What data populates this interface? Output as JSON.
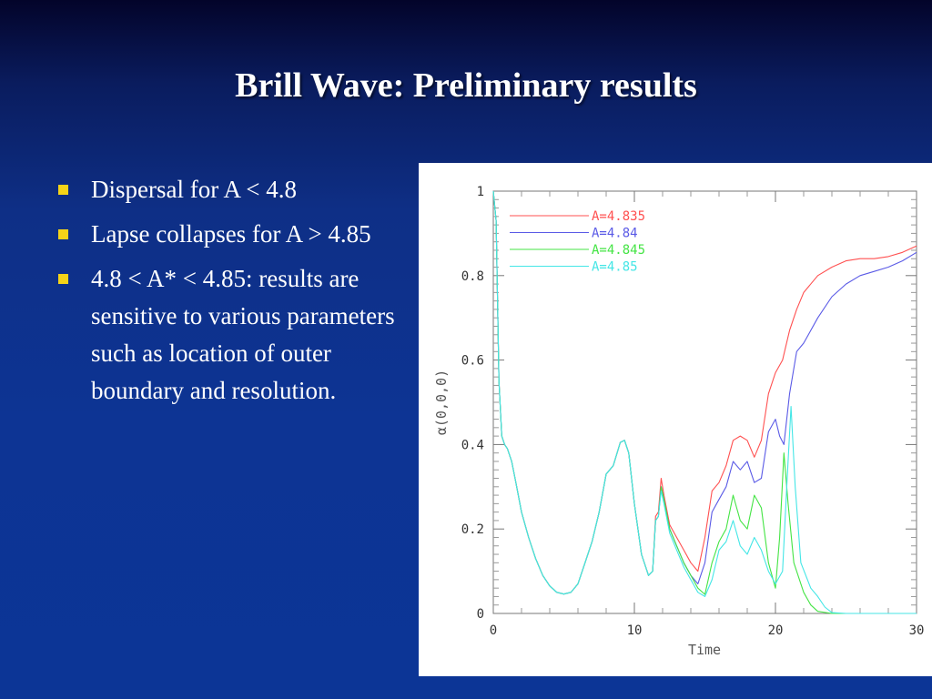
{
  "slide": {
    "title": "Brill Wave: Preliminary results",
    "bullets": [
      "Dispersal for A < 4.8",
      "Lapse collapses for A > 4.85",
      "4.8 < A* < 4.85: results are sensitive to various parameters such as location of outer boundary and resolution."
    ],
    "bullet_color": "#f5d418"
  },
  "chart_data": {
    "type": "line",
    "xlabel": "Time",
    "ylabel": "α(0,0,0)",
    "xlim": [
      0,
      30
    ],
    "ylim": [
      0,
      1
    ],
    "x_ticks": [
      0,
      10,
      20,
      30
    ],
    "y_ticks": [
      0,
      0.2,
      0.4,
      0.6,
      0.8,
      1
    ],
    "y_tick_labels": [
      "0",
      "0.2",
      "0.4",
      "0.6",
      "0.8",
      "1"
    ],
    "grid": false,
    "legend_position": "top-center",
    "series": [
      {
        "name": "A=4.835",
        "color": "#ff5050",
        "points": [
          [
            0,
            1
          ],
          [
            0.2,
            0.93
          ],
          [
            0.4,
            0.55
          ],
          [
            0.6,
            0.42
          ],
          [
            0.8,
            0.4
          ],
          [
            1,
            0.39
          ],
          [
            1.3,
            0.36
          ],
          [
            1.6,
            0.31
          ],
          [
            2,
            0.24
          ],
          [
            2.5,
            0.18
          ],
          [
            3,
            0.13
          ],
          [
            3.5,
            0.09
          ],
          [
            4,
            0.065
          ],
          [
            4.5,
            0.05
          ],
          [
            5,
            0.046
          ],
          [
            5.5,
            0.05
          ],
          [
            6,
            0.07
          ],
          [
            6.5,
            0.12
          ],
          [
            7,
            0.17
          ],
          [
            7.5,
            0.24
          ],
          [
            8,
            0.33
          ],
          [
            8.5,
            0.35
          ],
          [
            9,
            0.405
          ],
          [
            9.3,
            0.41
          ],
          [
            9.6,
            0.38
          ],
          [
            10,
            0.26
          ],
          [
            10.5,
            0.14
          ],
          [
            11,
            0.09
          ],
          [
            11.3,
            0.1
          ],
          [
            11.5,
            0.23
          ],
          [
            11.7,
            0.24
          ],
          [
            11.9,
            0.32
          ],
          [
            12.1,
            0.28
          ],
          [
            12.5,
            0.21
          ],
          [
            13,
            0.18
          ],
          [
            13.5,
            0.15
          ],
          [
            14,
            0.12
          ],
          [
            14.5,
            0.1
          ],
          [
            15,
            0.18
          ],
          [
            15.5,
            0.29
          ],
          [
            16,
            0.31
          ],
          [
            16.5,
            0.35
          ],
          [
            17,
            0.41
          ],
          [
            17.5,
            0.42
          ],
          [
            18,
            0.41
          ],
          [
            18.5,
            0.37
          ],
          [
            19,
            0.41
          ],
          [
            19.5,
            0.52
          ],
          [
            20,
            0.57
          ],
          [
            20.5,
            0.6
          ],
          [
            21,
            0.67
          ],
          [
            21.5,
            0.72
          ],
          [
            22,
            0.76
          ],
          [
            23,
            0.8
          ],
          [
            24,
            0.82
          ],
          [
            25,
            0.835
          ],
          [
            26,
            0.84
          ],
          [
            27,
            0.84
          ],
          [
            28,
            0.845
          ],
          [
            29,
            0.855
          ],
          [
            30,
            0.87
          ]
        ]
      },
      {
        "name": "A=4.84",
        "color": "#5a5ae6",
        "points": [
          [
            0,
            1
          ],
          [
            0.2,
            0.93
          ],
          [
            0.4,
            0.55
          ],
          [
            0.6,
            0.42
          ],
          [
            0.8,
            0.4
          ],
          [
            1,
            0.39
          ],
          [
            1.3,
            0.36
          ],
          [
            1.6,
            0.31
          ],
          [
            2,
            0.24
          ],
          [
            2.5,
            0.18
          ],
          [
            3,
            0.13
          ],
          [
            3.5,
            0.09
          ],
          [
            4,
            0.065
          ],
          [
            4.5,
            0.05
          ],
          [
            5,
            0.046
          ],
          [
            5.5,
            0.05
          ],
          [
            6,
            0.07
          ],
          [
            6.5,
            0.12
          ],
          [
            7,
            0.17
          ],
          [
            7.5,
            0.24
          ],
          [
            8,
            0.33
          ],
          [
            8.5,
            0.35
          ],
          [
            9,
            0.405
          ],
          [
            9.3,
            0.41
          ],
          [
            9.6,
            0.38
          ],
          [
            10,
            0.26
          ],
          [
            10.5,
            0.14
          ],
          [
            11,
            0.09
          ],
          [
            11.3,
            0.1
          ],
          [
            11.5,
            0.22
          ],
          [
            11.7,
            0.23
          ],
          [
            11.9,
            0.3
          ],
          [
            12.1,
            0.27
          ],
          [
            12.5,
            0.2
          ],
          [
            13,
            0.16
          ],
          [
            13.5,
            0.12
          ],
          [
            14,
            0.09
          ],
          [
            14.5,
            0.07
          ],
          [
            15,
            0.12
          ],
          [
            15.5,
            0.24
          ],
          [
            16,
            0.27
          ],
          [
            16.5,
            0.3
          ],
          [
            17,
            0.36
          ],
          [
            17.5,
            0.34
          ],
          [
            18,
            0.36
          ],
          [
            18.5,
            0.31
          ],
          [
            19,
            0.32
          ],
          [
            19.5,
            0.43
          ],
          [
            20,
            0.46
          ],
          [
            20.3,
            0.42
          ],
          [
            20.6,
            0.4
          ],
          [
            21,
            0.52
          ],
          [
            21.5,
            0.62
          ],
          [
            22,
            0.64
          ],
          [
            23,
            0.7
          ],
          [
            24,
            0.75
          ],
          [
            25,
            0.78
          ],
          [
            26,
            0.8
          ],
          [
            27,
            0.81
          ],
          [
            28,
            0.82
          ],
          [
            29,
            0.835
          ],
          [
            30,
            0.855
          ]
        ]
      },
      {
        "name": "A=4.845",
        "color": "#44e444",
        "points": [
          [
            0,
            1
          ],
          [
            0.2,
            0.93
          ],
          [
            0.4,
            0.55
          ],
          [
            0.6,
            0.42
          ],
          [
            0.8,
            0.4
          ],
          [
            1,
            0.39
          ],
          [
            1.3,
            0.36
          ],
          [
            1.6,
            0.31
          ],
          [
            2,
            0.24
          ],
          [
            2.5,
            0.18
          ],
          [
            3,
            0.13
          ],
          [
            3.5,
            0.09
          ],
          [
            4,
            0.065
          ],
          [
            4.5,
            0.05
          ],
          [
            5,
            0.046
          ],
          [
            5.5,
            0.05
          ],
          [
            6,
            0.07
          ],
          [
            6.5,
            0.12
          ],
          [
            7,
            0.17
          ],
          [
            7.5,
            0.24
          ],
          [
            8,
            0.33
          ],
          [
            8.5,
            0.35
          ],
          [
            9,
            0.405
          ],
          [
            9.3,
            0.41
          ],
          [
            9.6,
            0.38
          ],
          [
            10,
            0.26
          ],
          [
            10.5,
            0.14
          ],
          [
            11,
            0.09
          ],
          [
            11.3,
            0.1
          ],
          [
            11.5,
            0.22
          ],
          [
            11.7,
            0.23
          ],
          [
            11.9,
            0.3
          ],
          [
            12.1,
            0.27
          ],
          [
            12.5,
            0.2
          ],
          [
            13,
            0.16
          ],
          [
            13.5,
            0.12
          ],
          [
            14,
            0.09
          ],
          [
            14.5,
            0.06
          ],
          [
            15,
            0.045
          ],
          [
            15.5,
            0.12
          ],
          [
            16,
            0.17
          ],
          [
            16.5,
            0.2
          ],
          [
            17,
            0.28
          ],
          [
            17.5,
            0.22
          ],
          [
            18,
            0.2
          ],
          [
            18.5,
            0.28
          ],
          [
            19,
            0.25
          ],
          [
            19.5,
            0.12
          ],
          [
            20,
            0.06
          ],
          [
            20.3,
            0.18
          ],
          [
            20.6,
            0.38
          ],
          [
            20.9,
            0.26
          ],
          [
            21.3,
            0.12
          ],
          [
            22,
            0.05
          ],
          [
            22.5,
            0.02
          ],
          [
            23,
            0.005
          ],
          [
            24,
            0
          ],
          [
            30,
            0
          ]
        ]
      },
      {
        "name": "A=4.85",
        "color": "#44e6e6",
        "points": [
          [
            0,
            1
          ],
          [
            0.2,
            0.93
          ],
          [
            0.4,
            0.55
          ],
          [
            0.6,
            0.42
          ],
          [
            0.8,
            0.4
          ],
          [
            1,
            0.39
          ],
          [
            1.3,
            0.36
          ],
          [
            1.6,
            0.31
          ],
          [
            2,
            0.24
          ],
          [
            2.5,
            0.18
          ],
          [
            3,
            0.13
          ],
          [
            3.5,
            0.09
          ],
          [
            4,
            0.065
          ],
          [
            4.5,
            0.05
          ],
          [
            5,
            0.046
          ],
          [
            5.5,
            0.05
          ],
          [
            6,
            0.07
          ],
          [
            6.5,
            0.12
          ],
          [
            7,
            0.17
          ],
          [
            7.5,
            0.24
          ],
          [
            8,
            0.33
          ],
          [
            8.5,
            0.35
          ],
          [
            9,
            0.405
          ],
          [
            9.3,
            0.41
          ],
          [
            9.6,
            0.38
          ],
          [
            10,
            0.26
          ],
          [
            10.5,
            0.14
          ],
          [
            11,
            0.09
          ],
          [
            11.3,
            0.1
          ],
          [
            11.5,
            0.22
          ],
          [
            11.7,
            0.23
          ],
          [
            11.9,
            0.29
          ],
          [
            12.1,
            0.26
          ],
          [
            12.5,
            0.19
          ],
          [
            13,
            0.15
          ],
          [
            13.5,
            0.11
          ],
          [
            14,
            0.08
          ],
          [
            14.5,
            0.05
          ],
          [
            15,
            0.04
          ],
          [
            15.5,
            0.08
          ],
          [
            16,
            0.15
          ],
          [
            16.5,
            0.17
          ],
          [
            17,
            0.22
          ],
          [
            17.5,
            0.16
          ],
          [
            18,
            0.14
          ],
          [
            18.5,
            0.18
          ],
          [
            19,
            0.15
          ],
          [
            19.5,
            0.1
          ],
          [
            20,
            0.07
          ],
          [
            20.5,
            0.1
          ],
          [
            20.8,
            0.3
          ],
          [
            21.1,
            0.49
          ],
          [
            21.4,
            0.3
          ],
          [
            21.8,
            0.12
          ],
          [
            22.5,
            0.06
          ],
          [
            23,
            0.04
          ],
          [
            23.5,
            0.015
          ],
          [
            24,
            0.002
          ],
          [
            25,
            0
          ],
          [
            30,
            0
          ]
        ]
      }
    ]
  }
}
